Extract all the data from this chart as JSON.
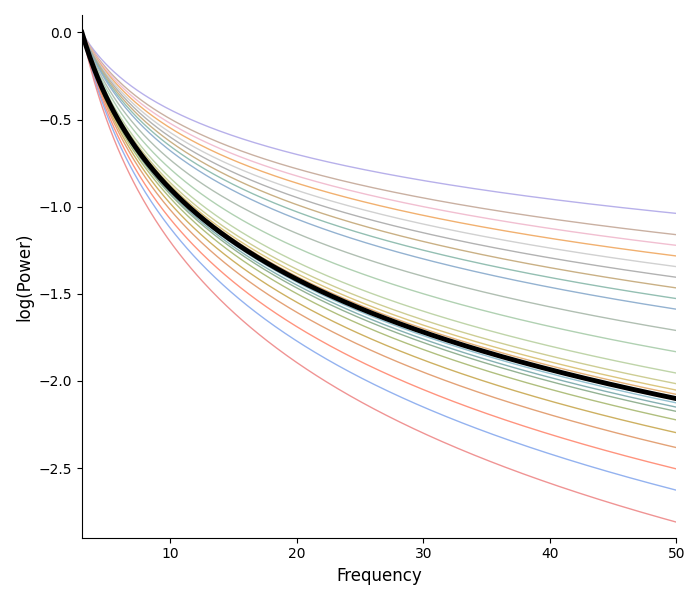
{
  "title": "",
  "xlabel": "Frequency",
  "ylabel": "log(Power)",
  "xlim": [
    3,
    50
  ],
  "ylim": [
    -2.9,
    0.1
  ],
  "freq_start": 3,
  "freq_end": 50,
  "n_points": 300,
  "mean_exponent": 1.72,
  "component_exponents": [
    0.85,
    0.95,
    1.0,
    1.05,
    1.1,
    1.15,
    1.2,
    1.25,
    1.3,
    1.4,
    1.5,
    1.6,
    1.65,
    1.68,
    1.7,
    1.72,
    1.74,
    1.76,
    1.78,
    1.82,
    1.88,
    1.95,
    2.05,
    2.15,
    2.3
  ],
  "component_colors": [
    "#b0b0ff",
    "#c8a898",
    "#ffb8d0",
    "#ffaa66",
    "#cccccc",
    "#aaaaaa",
    "#999999",
    "#88bbaa",
    "#70aaaa",
    "#99ccbb",
    "#aabb99",
    "#b8ccaa",
    "#ddcc88",
    "#ffcc88",
    "#e8aa77",
    "#cc8866",
    "#88cccc",
    "#66bbaa",
    "#99bb99",
    "#bbcc88",
    "#ddbb66",
    "#ffcc66",
    "#ffaa88",
    "#88aaff",
    "#ff8888"
  ],
  "mean_color": "#000000",
  "mean_linewidth": 3.5,
  "component_linewidth": 1.0,
  "background_color": "#ffffff",
  "tick_labels_x": [
    10,
    20,
    30,
    40,
    50
  ],
  "tick_labels_y": [
    0.0,
    -0.5,
    -1.0,
    -1.5,
    -2.0,
    -2.5
  ]
}
